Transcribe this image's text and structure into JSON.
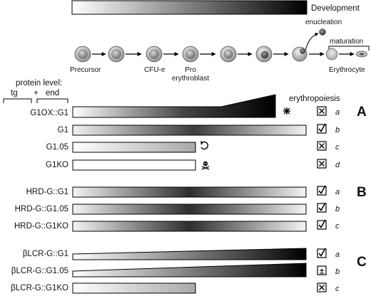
{
  "header": {
    "development_label": "Development",
    "enucleation_label": "enucleation",
    "maturation_label": "maturation"
  },
  "stages": {
    "precursor": "Precursor",
    "cfue": "CFU-e",
    "pro_line1": "Pro",
    "pro_line2": "erythroblast",
    "erythrocyte": "Erythrocyte"
  },
  "legend": {
    "protein_level": "protein level:",
    "tg": "tg",
    "plus": "+",
    "end": "end",
    "erythropoiesis": "erythropoiesis"
  },
  "panels": {
    "A": "A",
    "B": "B",
    "C": "C"
  },
  "rows": [
    {
      "label": "G1OX::G1",
      "mark": "a",
      "outcome": "fail",
      "status_icon": "x-box-icon",
      "end_icon": "burst-icon"
    },
    {
      "label": "G1",
      "mark": "b",
      "outcome": "ok",
      "status_icon": "check-box-icon"
    },
    {
      "label": "G1.05",
      "mark": "c",
      "outcome": "fail",
      "status_icon": "x-box-icon",
      "end_icon": "return-arrow-icon"
    },
    {
      "label": "G1KO",
      "mark": "d",
      "outcome": "fail",
      "status_icon": "x-box-icon",
      "end_icon": "skull-icon"
    },
    {
      "label": "HRD-G::G1",
      "mark": "a",
      "outcome": "ok",
      "status_icon": "check-box-icon"
    },
    {
      "label": "HRD-G::G1.05",
      "mark": "b",
      "outcome": "ok",
      "status_icon": "check-box-icon"
    },
    {
      "label": "HRD-G::G1KO",
      "mark": "c",
      "outcome": "ok",
      "status_icon": "check-box-icon"
    },
    {
      "label": "βLCR-G::G1",
      "mark": "a",
      "outcome": "ok",
      "status_icon": "check-box-icon"
    },
    {
      "label": "βLCR-G::G1.05",
      "mark": "b",
      "outcome": "partial",
      "status_icon": "plus-minus-box-icon",
      "status_symbol": "±"
    },
    {
      "label": "βLCR-G::G1KO",
      "mark": "c",
      "outcome": "fail",
      "status_icon": "x-box-icon"
    }
  ]
}
